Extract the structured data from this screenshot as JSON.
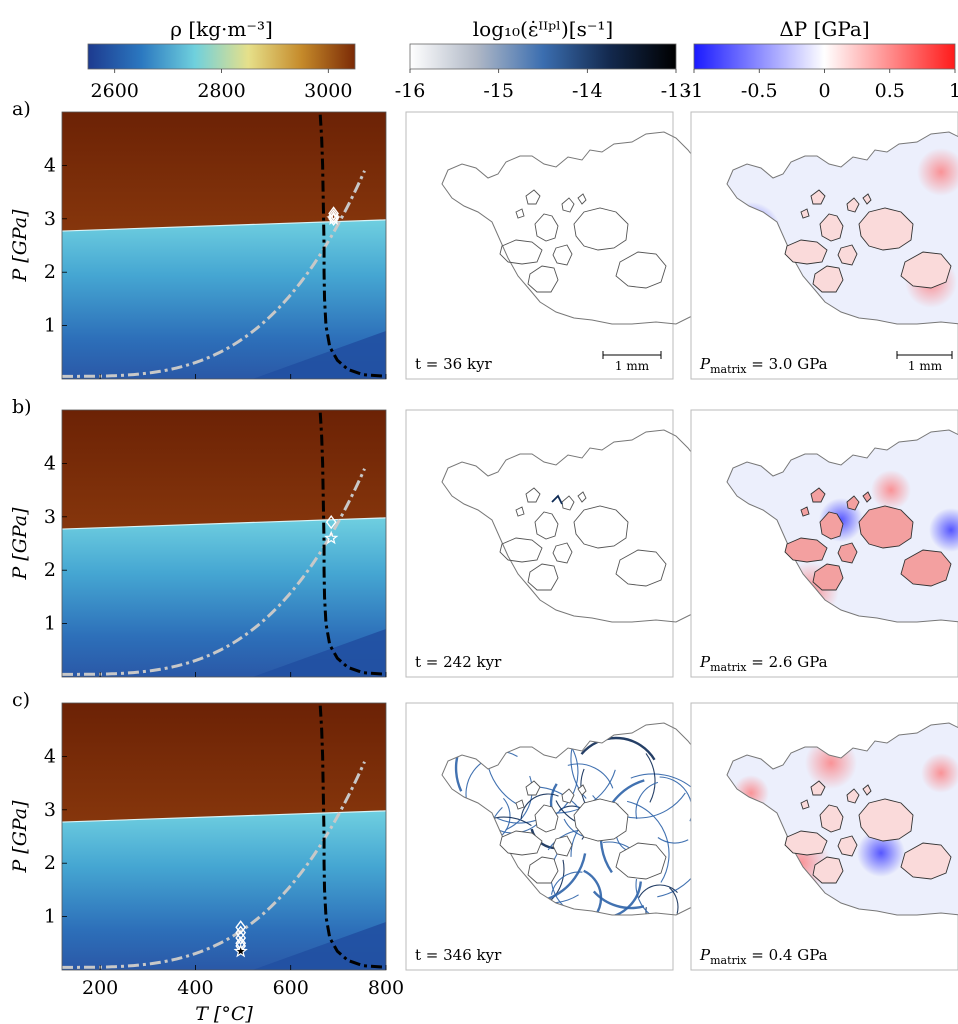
{
  "colorbars": [
    {
      "id": "density",
      "title": "ρ [kg·m⁻³]",
      "ticks": [
        2600,
        2800,
        3000
      ],
      "range": [
        2550,
        3050
      ],
      "stops": [
        "#1d3a8f",
        "#2b78c0",
        "#6fd0dd",
        "#e6e08a",
        "#c58a2a",
        "#7b2a06"
      ]
    },
    {
      "id": "strainrate",
      "title": "log₁₀(ε̇ᴵᴵᵖˡ)[s⁻¹]",
      "ticks": [
        -16,
        -15,
        -14,
        -13
      ],
      "range": [
        -16,
        -13
      ],
      "stops": [
        "#ffffff",
        "#b0b8c6",
        "#3b6eb0",
        "#13294e",
        "#000000"
      ]
    },
    {
      "id": "pressure",
      "title": "ΔP [GPa]",
      "ticks": [
        "-1",
        "-0.5",
        "0",
        "0.5",
        "1"
      ],
      "range": [
        -1,
        1
      ],
      "stops": [
        "#1a1aff",
        "#ffffff",
        "#ff1a1a"
      ]
    }
  ],
  "axes": {
    "xlabel": "T [°C]",
    "ylabel": "P [GPa]",
    "xlim": [
      120,
      800
    ],
    "ylim": [
      0,
      5
    ],
    "xticks": [
      200,
      400,
      600,
      800
    ],
    "yticks": [
      1,
      2,
      3,
      4
    ]
  },
  "chart_data": [
    {
      "type": "line",
      "panel": "a)",
      "marker_T": 690,
      "marker_P": [
        3.0,
        3.05,
        3.1
      ],
      "star_P": 3.0
    },
    {
      "type": "line",
      "panel": "b)",
      "marker_T": 685,
      "marker_P": [
        2.9
      ],
      "star_P": 2.6
    },
    {
      "type": "line",
      "panel": "c)",
      "marker_T": 495,
      "marker_P": [
        0.8,
        0.7,
        0.6,
        0.5,
        0.45
      ],
      "star_P": 0.35
    }
  ],
  "rows": [
    {
      "tag": "a)",
      "time": "t = 36 kyr",
      "pmatrix": "P",
      "pmatrix_sub": "matrix",
      "pmatrix_val": " = 3.0 GPa",
      "scalebar": "1 mm"
    },
    {
      "tag": "b)",
      "time": "t = 242 kyr",
      "pmatrix": "P",
      "pmatrix_sub": "matrix",
      "pmatrix_val": " = 2.6 GPa",
      "scalebar": ""
    },
    {
      "tag": "c)",
      "time": "t = 346 kyr",
      "pmatrix": "P",
      "pmatrix_sub": "matrix",
      "pmatrix_val": " = 0.4 GPa",
      "scalebar": ""
    }
  ]
}
